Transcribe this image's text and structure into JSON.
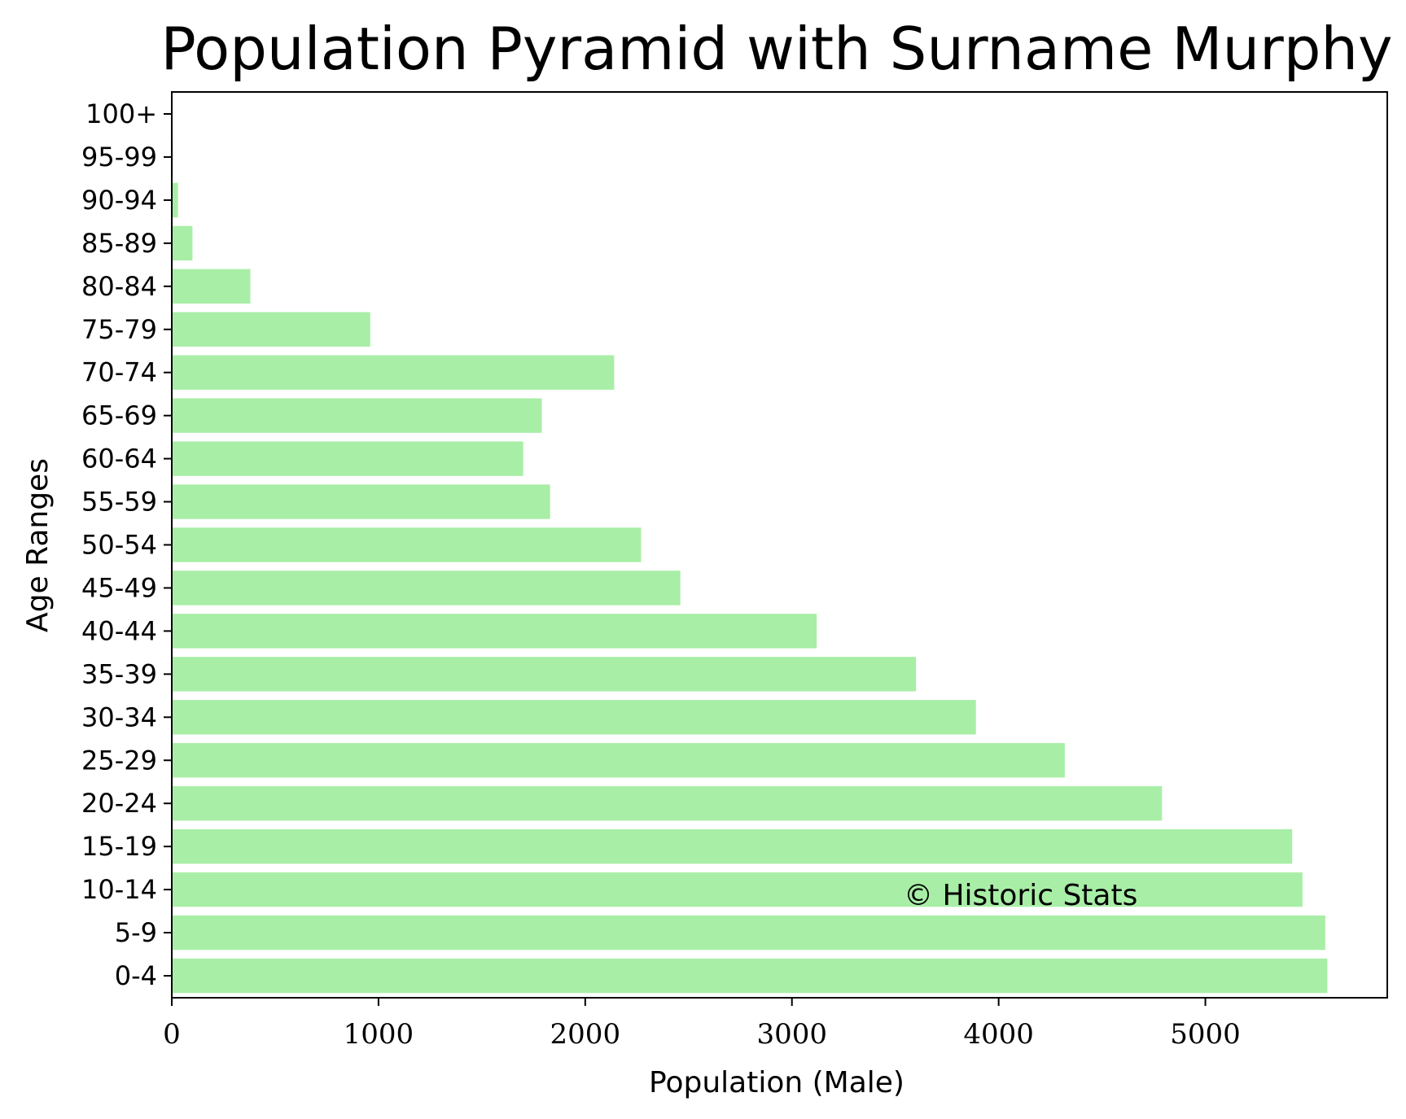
{
  "chart_data": {
    "type": "bar",
    "orientation": "horizontal",
    "title": "Population Pyramid with Surname Murphy",
    "xlabel": "Population (Male)",
    "ylabel": "Age Ranges",
    "categories": [
      "0-4",
      "5-9",
      "10-14",
      "15-19",
      "20-24",
      "25-29",
      "30-34",
      "35-39",
      "40-44",
      "45-49",
      "50-54",
      "55-59",
      "60-64",
      "65-69",
      "70-74",
      "75-79",
      "80-84",
      "85-89",
      "90-94",
      "95-99",
      "100+"
    ],
    "values": [
      5590,
      5580,
      5470,
      5420,
      4790,
      4320,
      3890,
      3600,
      3120,
      2460,
      2270,
      1830,
      1700,
      1790,
      2140,
      960,
      380,
      100,
      30,
      5,
      0
    ],
    "xticks": [
      "0",
      "1000",
      "2000",
      "3000",
      "4000",
      "5000"
    ],
    "xlim": [
      0,
      5880
    ],
    "bar_color": "#a8eea6",
    "grid": false,
    "watermark": "© Historic Stats"
  }
}
